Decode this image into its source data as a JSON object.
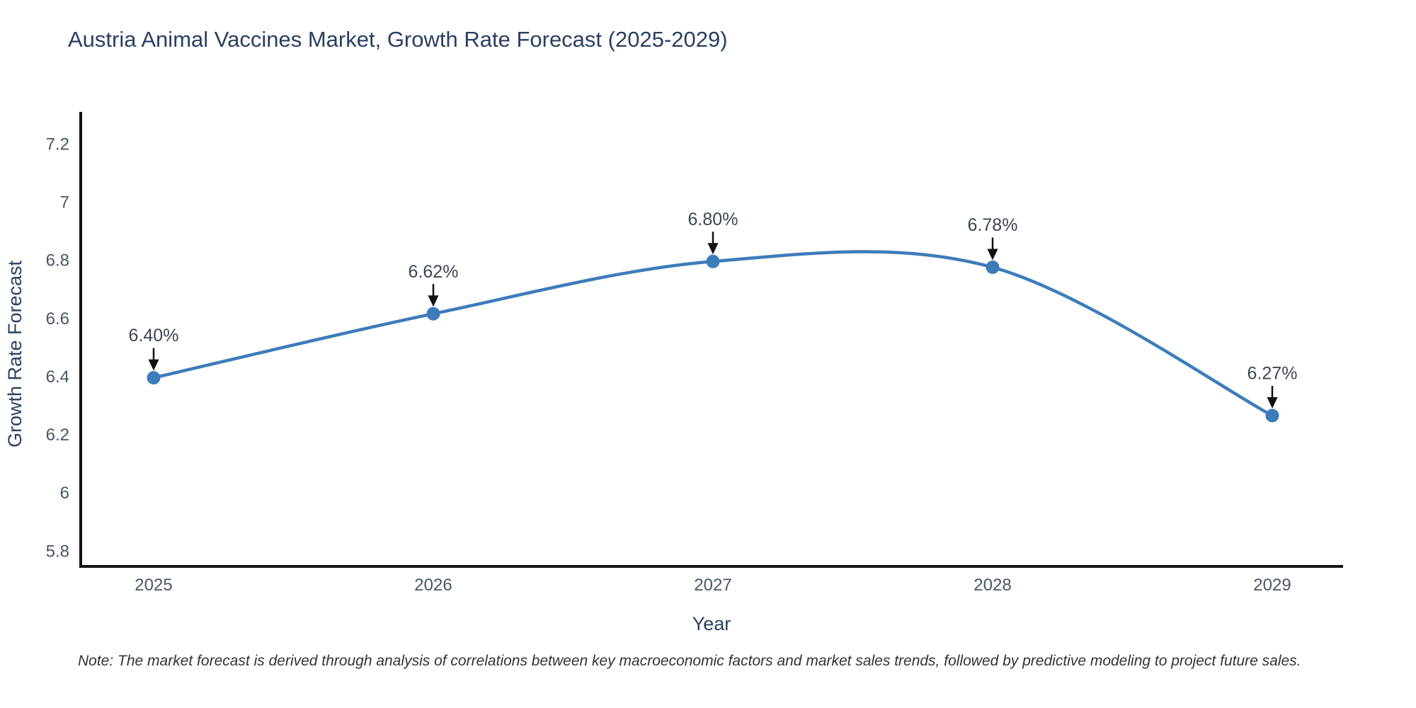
{
  "title": "Austria Animal Vaccines Market, Growth Rate Forecast (2025-2029)",
  "note": "Note: The market forecast is derived through analysis of correlations between key macroeconomic factors and market sales trends, followed by predictive modeling to project future sales.",
  "chart_data": {
    "type": "line",
    "line_shape": "spline",
    "title": "Austria Animal Vaccines Market, Growth Rate Forecast (2025-2029)",
    "xlabel": "Year",
    "ylabel": "Growth Rate Forecast",
    "categories": [
      "2025",
      "2026",
      "2027",
      "2028",
      "2029"
    ],
    "values": [
      6.4,
      6.62,
      6.8,
      6.78,
      6.27
    ],
    "point_labels": [
      "6.40%",
      "6.62%",
      "6.80%",
      "6.78%",
      "6.27%"
    ],
    "series_name": "Growth Rate Forecast",
    "ylim": [
      5.75,
      7.3
    ],
    "y_ticks": [
      "5.8",
      "6",
      "6.2",
      "6.4",
      "6.6",
      "6.8",
      "7",
      "7.2"
    ],
    "y_tick_values": [
      5.8,
      6.0,
      6.2,
      6.4,
      6.6,
      6.8,
      7.0,
      7.2
    ],
    "grid": false,
    "legend": "none",
    "annotations_have_arrows": true,
    "colors": {
      "line": "#3d7cba",
      "marker": "#3d7cba",
      "annotation_arrow": "#111111",
      "annotation_text": "#3d4554",
      "axis_line": "#131313",
      "tick_text": "#4a5568",
      "title_text": "#2a3f5f",
      "note_text": "#333333",
      "background": "#ffffff"
    }
  }
}
